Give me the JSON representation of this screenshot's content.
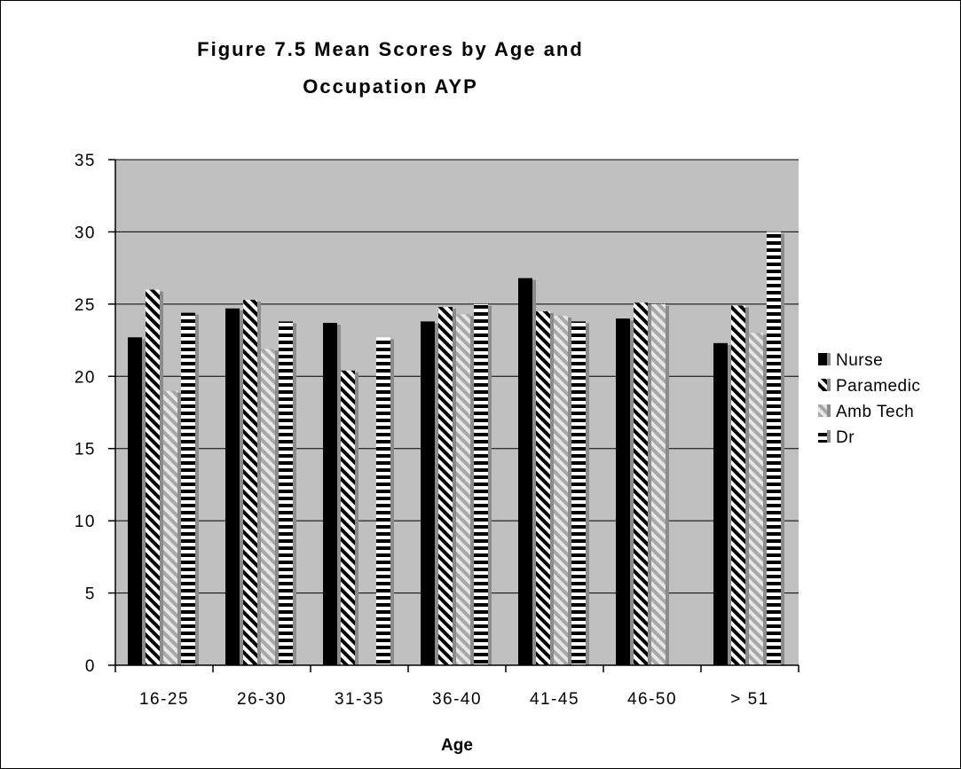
{
  "chart_data": {
    "type": "bar",
    "title_line1": "Figure 7.5 Mean Scores by Age and",
    "title_line2": "Occupation AYP",
    "xlabel": "Age",
    "ylabel": "",
    "ylim": [
      0,
      35
    ],
    "yticks": [
      0,
      5,
      10,
      15,
      20,
      25,
      30,
      35
    ],
    "categories": [
      "16-25",
      "26-30",
      "31-35",
      "36-40",
      "41-45",
      "46-50",
      "> 51"
    ],
    "series": [
      {
        "name": "Nurse",
        "values": [
          22.7,
          24.7,
          23.7,
          23.8,
          26.8,
          24.0,
          22.3
        ]
      },
      {
        "name": "Paramedic",
        "values": [
          26.0,
          25.3,
          20.4,
          24.8,
          24.5,
          25.1,
          24.9
        ]
      },
      {
        "name": "Amb Tech",
        "values": [
          19.0,
          21.9,
          null,
          24.3,
          24.2,
          25.0,
          23.0
        ]
      },
      {
        "name": "Dr",
        "values": [
          24.4,
          23.8,
          22.7,
          25.0,
          23.8,
          null,
          30.0
        ]
      }
    ],
    "grid": true,
    "legend_position": "right",
    "colors": {
      "plot_background": "#c0c0c0",
      "nurse": "#000000",
      "paramedic": "#000000",
      "amb_tech": "#a0a0a0",
      "dr": "#000000"
    }
  }
}
